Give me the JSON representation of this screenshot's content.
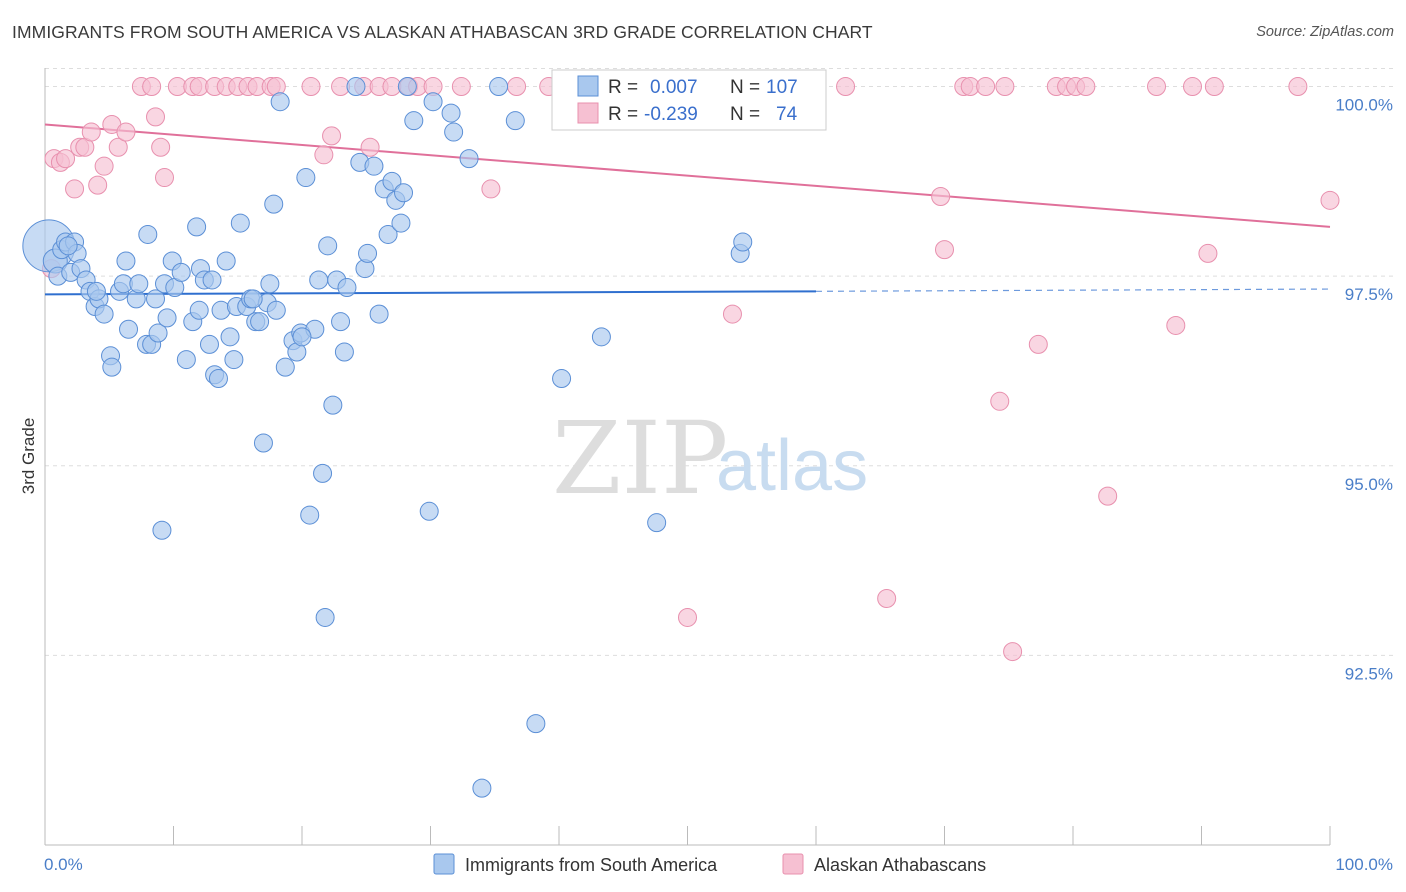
{
  "header": {
    "title": "IMMIGRANTS FROM SOUTH AMERICA VS ALASKAN ATHABASCAN 3RD GRADE CORRELATION CHART",
    "source": "Source: ZipAtlas.com"
  },
  "watermark": {
    "zip": "ZIP",
    "atlas": "atlas"
  },
  "colors": {
    "blue_fill": "#a9c8ee",
    "blue_stroke": "#5b8fd6",
    "blue_line": "#2f6fcf",
    "pink_fill": "#f6c0d2",
    "pink_stroke": "#e890ae",
    "pink_line": "#e0709a",
    "grid": "#dddddd",
    "tick_text": "#4a7ec8"
  },
  "stats_box": {
    "rows": [
      {
        "r_label": "R =",
        "r_value": "0.007",
        "n_label": "N =",
        "n_value": "107"
      },
      {
        "r_label": "R =",
        "r_value": "-0.239",
        "n_label": "N =",
        "n_value": "74"
      }
    ]
  },
  "chart_data": {
    "type": "scatter",
    "title": "IMMIGRANTS FROM SOUTH AMERICA VS ALASKAN ATHABASCAN 3RD GRADE CORRELATION CHART",
    "xlabel": "",
    "ylabel": "3rd Grade",
    "xlim": [
      0,
      100
    ],
    "ylim": [
      90.0,
      100.35
    ],
    "x_ticks": [
      0,
      10,
      20,
      30,
      40,
      50,
      60,
      70,
      80,
      90,
      100
    ],
    "x_tick_labels": {
      "0": "0.0%",
      "100": "100.0%"
    },
    "y_ticks": [
      92.5,
      95.0,
      97.5,
      100.0
    ],
    "y_tick_labels": [
      "92.5%",
      "95.0%",
      "97.5%",
      "100.0%"
    ],
    "grid": {
      "horizontal": true,
      "vertical": false,
      "style": "dashed"
    },
    "legend_position": "bottom-center",
    "series": [
      {
        "name": "Immigrants from South America",
        "color": "#a9c8ee",
        "R": 0.007,
        "N": 107,
        "trend": {
          "x0": 0,
          "y0": 97.26,
          "x1": 60,
          "y1": 97.3,
          "dashed_to_x": 100,
          "dashed_to_y": 97.33
        },
        "points": [
          [
            0.3,
            97.9,
            26
          ],
          [
            0.8,
            97.7,
            12
          ],
          [
            1.0,
            97.5,
            10
          ],
          [
            1.3,
            97.85,
            10
          ],
          [
            1.6,
            97.95,
            10
          ],
          [
            2.0,
            97.55,
            10
          ],
          [
            2.3,
            97.95,
            10
          ],
          [
            2.5,
            97.8,
            10
          ],
          [
            2.8,
            97.6,
            10
          ],
          [
            3.2,
            97.45,
            10
          ],
          [
            3.5,
            97.3,
            10
          ],
          [
            3.9,
            97.1,
            10
          ],
          [
            4.2,
            97.2,
            10
          ],
          [
            4.6,
            97.0,
            10
          ],
          [
            5.1,
            96.45,
            10
          ],
          [
            5.2,
            96.3,
            10
          ],
          [
            5.8,
            97.3,
            10
          ],
          [
            6.1,
            97.4,
            10
          ],
          [
            6.3,
            97.7,
            10
          ],
          [
            6.5,
            96.8,
            10
          ],
          [
            7.1,
            97.2,
            10
          ],
          [
            7.3,
            97.4,
            10
          ],
          [
            7.9,
            96.6,
            10
          ],
          [
            8.0,
            98.05,
            10
          ],
          [
            8.3,
            96.6,
            10
          ],
          [
            8.6,
            97.2,
            10
          ],
          [
            8.8,
            96.75,
            10
          ],
          [
            9.3,
            97.4,
            10
          ],
          [
            9.5,
            96.95,
            10
          ],
          [
            9.9,
            97.7,
            10
          ],
          [
            10.1,
            97.35,
            10
          ],
          [
            10.6,
            97.55,
            10
          ],
          [
            11.0,
            96.4,
            10
          ],
          [
            11.5,
            96.9,
            10
          ],
          [
            11.8,
            98.15,
            10
          ],
          [
            12.1,
            97.6,
            10
          ],
          [
            12.4,
            97.45,
            10
          ],
          [
            12.8,
            96.6,
            10
          ],
          [
            13.0,
            97.45,
            10
          ],
          [
            13.2,
            96.2,
            10
          ],
          [
            13.5,
            96.15,
            10
          ],
          [
            13.7,
            97.05,
            10
          ],
          [
            14.1,
            97.7,
            10
          ],
          [
            14.4,
            96.7,
            10
          ],
          [
            14.7,
            96.4,
            10
          ],
          [
            14.9,
            97.1,
            10
          ],
          [
            15.2,
            98.2,
            10
          ],
          [
            15.7,
            97.1,
            10
          ],
          [
            16.0,
            97.2,
            10
          ],
          [
            16.4,
            96.9,
            10
          ],
          [
            16.7,
            96.9,
            10
          ],
          [
            17.0,
            95.3,
            10
          ],
          [
            17.3,
            97.15,
            10
          ],
          [
            17.5,
            97.4,
            10
          ],
          [
            17.8,
            98.45,
            10
          ],
          [
            18.0,
            97.05,
            10
          ],
          [
            18.7,
            96.3,
            10
          ],
          [
            19.3,
            96.65,
            10
          ],
          [
            19.6,
            96.5,
            10
          ],
          [
            19.9,
            96.75,
            10
          ],
          [
            20.3,
            98.8,
            10
          ],
          [
            20.6,
            94.35,
            10
          ],
          [
            21.0,
            96.8,
            10
          ],
          [
            21.3,
            97.45,
            10
          ],
          [
            21.6,
            94.9,
            10
          ],
          [
            21.8,
            93.0,
            10
          ],
          [
            22.0,
            97.9,
            10
          ],
          [
            22.4,
            95.8,
            10
          ],
          [
            22.7,
            97.45,
            10
          ],
          [
            23.0,
            96.9,
            10
          ],
          [
            23.3,
            96.5,
            10
          ],
          [
            23.5,
            97.35,
            10
          ],
          [
            24.2,
            100.0,
            10
          ],
          [
            24.5,
            99.0,
            10
          ],
          [
            24.9,
            97.6,
            10
          ],
          [
            25.1,
            97.8,
            10
          ],
          [
            25.6,
            98.95,
            10
          ],
          [
            26.0,
            97.0,
            10
          ],
          [
            26.4,
            98.65,
            10
          ],
          [
            26.7,
            98.05,
            10
          ],
          [
            27.0,
            98.75,
            10
          ],
          [
            27.3,
            98.5,
            10
          ],
          [
            27.7,
            98.2,
            10
          ],
          [
            27.9,
            98.6,
            10
          ],
          [
            28.2,
            100.0,
            10
          ],
          [
            28.7,
            99.55,
            10
          ],
          [
            29.9,
            94.4,
            10
          ],
          [
            30.2,
            99.8,
            10
          ],
          [
            31.6,
            99.65,
            10
          ],
          [
            31.8,
            99.4,
            10
          ],
          [
            33.0,
            99.05,
            10
          ],
          [
            34.0,
            90.75,
            10
          ],
          [
            35.3,
            100.0,
            10
          ],
          [
            36.6,
            99.55,
            10
          ],
          [
            38.2,
            91.6,
            10
          ],
          [
            40.2,
            96.15,
            10
          ],
          [
            43.3,
            96.7,
            10
          ],
          [
            47.6,
            94.25,
            10
          ],
          [
            54.1,
            97.8,
            10
          ],
          [
            54.3,
            97.95,
            10
          ],
          [
            1.8,
            97.9,
            10
          ],
          [
            4.0,
            97.3,
            10
          ],
          [
            12.0,
            97.05,
            10
          ],
          [
            16.2,
            97.2,
            10
          ],
          [
            18.3,
            99.8,
            10
          ],
          [
            9.1,
            94.15,
            10
          ],
          [
            20.0,
            96.7,
            10
          ]
        ]
      },
      {
        "name": "Alaskan Athabascans",
        "color": "#f6c0d2",
        "R": -0.239,
        "N": 74,
        "trend": {
          "x0": 0,
          "y0": 99.5,
          "x1": 100,
          "y1": 98.15
        },
        "points": [
          [
            0.5,
            97.6,
            10
          ],
          [
            0.7,
            99.05,
            10
          ],
          [
            1.2,
            99.0,
            10
          ],
          [
            1.6,
            99.05,
            10
          ],
          [
            2.3,
            98.65,
            10
          ],
          [
            2.7,
            99.2,
            10
          ],
          [
            3.1,
            99.2,
            10
          ],
          [
            3.6,
            99.4,
            10
          ],
          [
            4.1,
            98.7,
            10
          ],
          [
            4.6,
            98.95,
            10
          ],
          [
            5.2,
            99.5,
            10
          ],
          [
            5.7,
            99.2,
            10
          ],
          [
            6.3,
            99.4,
            10
          ],
          [
            7.5,
            100.0,
            10
          ],
          [
            8.3,
            100.0,
            10
          ],
          [
            8.6,
            99.6,
            10
          ],
          [
            9.0,
            99.2,
            10
          ],
          [
            9.3,
            98.8,
            10
          ],
          [
            10.3,
            100.0,
            10
          ],
          [
            11.5,
            100.0,
            10
          ],
          [
            12.0,
            100.0,
            10
          ],
          [
            13.2,
            100.0,
            10
          ],
          [
            14.1,
            100.0,
            10
          ],
          [
            15.0,
            100.0,
            10
          ],
          [
            15.8,
            100.0,
            10
          ],
          [
            16.5,
            100.0,
            10
          ],
          [
            17.6,
            100.0,
            10
          ],
          [
            18.0,
            100.0,
            10
          ],
          [
            20.7,
            100.0,
            10
          ],
          [
            21.7,
            99.1,
            10
          ],
          [
            22.3,
            99.35,
            10
          ],
          [
            23.0,
            100.0,
            10
          ],
          [
            24.8,
            100.0,
            10
          ],
          [
            25.3,
            99.2,
            10
          ],
          [
            26.0,
            100.0,
            10
          ],
          [
            27.0,
            100.0,
            10
          ],
          [
            28.3,
            100.0,
            10
          ],
          [
            29.0,
            100.0,
            10
          ],
          [
            30.2,
            100.0,
            10
          ],
          [
            32.4,
            100.0,
            10
          ],
          [
            34.7,
            98.65,
            10
          ],
          [
            36.7,
            100.0,
            10
          ],
          [
            39.2,
            100.0,
            10
          ],
          [
            40.5,
            100.0,
            10
          ],
          [
            42.5,
            100.0,
            10
          ],
          [
            44.5,
            100.0,
            10
          ],
          [
            46.8,
            100.0,
            10
          ],
          [
            50.0,
            93.0,
            10
          ],
          [
            53.5,
            97.0,
            10
          ],
          [
            57.0,
            100.0,
            10
          ],
          [
            60.0,
            100.0,
            10
          ],
          [
            62.3,
            100.0,
            10
          ],
          [
            65.5,
            93.25,
            10
          ],
          [
            69.7,
            98.55,
            10
          ],
          [
            70.0,
            97.85,
            10
          ],
          [
            71.5,
            100.0,
            10
          ],
          [
            72.0,
            100.0,
            10
          ],
          [
            73.2,
            100.0,
            10
          ],
          [
            74.3,
            95.85,
            10
          ],
          [
            74.7,
            100.0,
            10
          ],
          [
            75.3,
            92.55,
            10
          ],
          [
            77.3,
            96.6,
            10
          ],
          [
            78.7,
            100.0,
            10
          ],
          [
            79.5,
            100.0,
            10
          ],
          [
            80.2,
            100.0,
            10
          ],
          [
            81.0,
            100.0,
            10
          ],
          [
            82.7,
            94.6,
            10
          ],
          [
            86.5,
            100.0,
            10
          ],
          [
            88.0,
            96.85,
            10
          ],
          [
            89.3,
            100.0,
            10
          ],
          [
            90.5,
            97.8,
            10
          ],
          [
            91.0,
            100.0,
            10
          ],
          [
            97.5,
            100.0,
            10
          ],
          [
            100.0,
            98.5,
            10
          ]
        ]
      }
    ]
  }
}
